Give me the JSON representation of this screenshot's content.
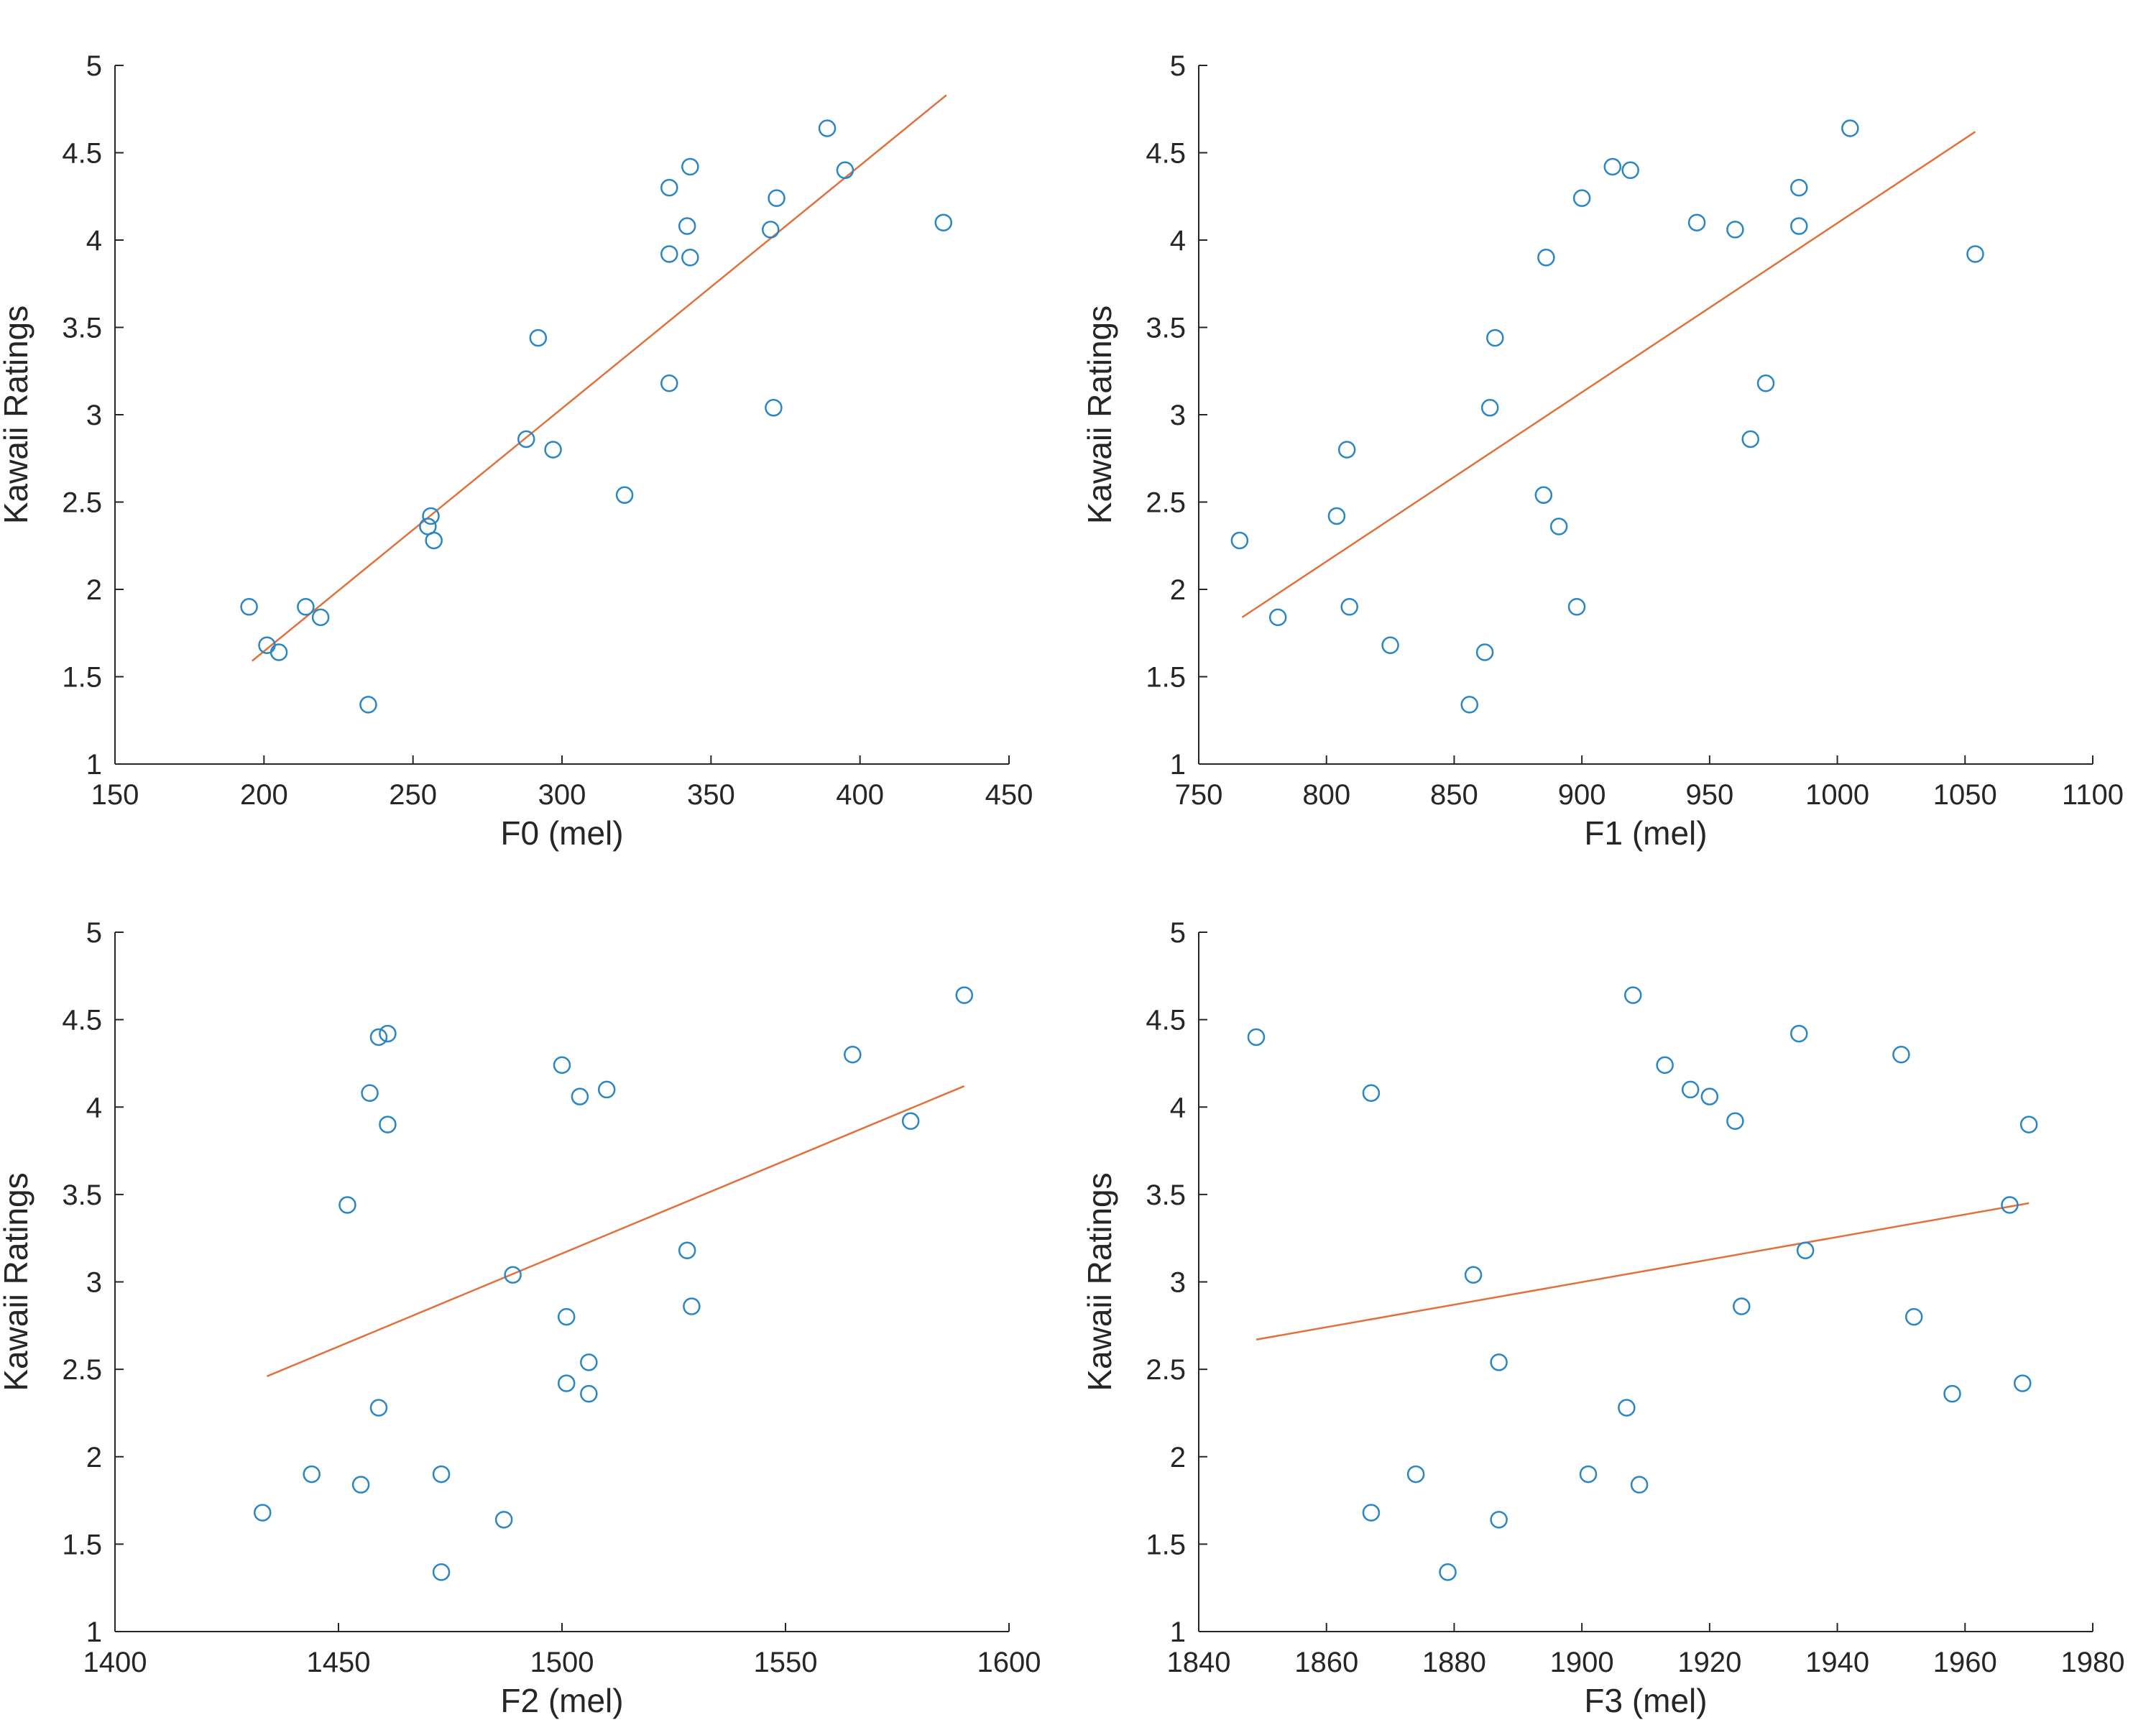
{
  "colors": {
    "points": "#2a86c4",
    "fit": "#e0713d",
    "axis": "#262626"
  },
  "chart_data": [
    {
      "type": "scatter",
      "xlabel": "F0 (mel)",
      "ylabel": "Kawaii Ratings",
      "xlim": [
        150,
        450
      ],
      "ylim": [
        1,
        5
      ],
      "xticks": [
        "150",
        "200",
        "250",
        "300",
        "350",
        "400",
        "450"
      ],
      "yticks": [
        "1",
        "1.5",
        "2",
        "2.5",
        "3",
        "3.5",
        "4",
        "4.5",
        "5"
      ],
      "points": [
        [
          195,
          1.9
        ],
        [
          201,
          1.68
        ],
        [
          205,
          1.64
        ],
        [
          214,
          1.9
        ],
        [
          219,
          1.84
        ],
        [
          235,
          1.34
        ],
        [
          255,
          2.36
        ],
        [
          256,
          2.42
        ],
        [
          257,
          2.28
        ],
        [
          288,
          2.86
        ],
        [
          292,
          3.44
        ],
        [
          297,
          2.8
        ],
        [
          321,
          2.54
        ],
        [
          336,
          4.3
        ],
        [
          336,
          3.92
        ],
        [
          336,
          3.18
        ],
        [
          342,
          4.08
        ],
        [
          343,
          4.42
        ],
        [
          343,
          3.9
        ],
        [
          370,
          4.06
        ],
        [
          371,
          3.04
        ],
        [
          372,
          4.24
        ],
        [
          389,
          4.64
        ],
        [
          395,
          4.4
        ],
        [
          428,
          4.1
        ]
      ],
      "fit_line": [
        [
          196,
          1.59
        ],
        [
          429,
          4.83
        ]
      ]
    },
    {
      "type": "scatter",
      "xlabel": "F1 (mel)",
      "ylabel": "Kawaii Ratings",
      "xlim": [
        750,
        1100
      ],
      "ylim": [
        1,
        5
      ],
      "xticks": [
        "750",
        "800",
        "850",
        "900",
        "950",
        "1000",
        "1050",
        "1100"
      ],
      "yticks": [
        "1",
        "1.5",
        "2",
        "2.5",
        "3",
        "3.5",
        "4",
        "4.5",
        "5"
      ],
      "points": [
        [
          766,
          2.28
        ],
        [
          781,
          1.84
        ],
        [
          804,
          2.42
        ],
        [
          808,
          2.8
        ],
        [
          809,
          1.9
        ],
        [
          825,
          1.68
        ],
        [
          856,
          1.34
        ],
        [
          862,
          1.64
        ],
        [
          864,
          3.04
        ],
        [
          866,
          3.44
        ],
        [
          885,
          2.54
        ],
        [
          886,
          3.9
        ],
        [
          891,
          2.36
        ],
        [
          898,
          1.9
        ],
        [
          900,
          4.24
        ],
        [
          912,
          4.42
        ],
        [
          919,
          4.4
        ],
        [
          945,
          4.1
        ],
        [
          960,
          4.06
        ],
        [
          966,
          2.86
        ],
        [
          972,
          3.18
        ],
        [
          985,
          4.3
        ],
        [
          985,
          4.08
        ],
        [
          1005,
          4.64
        ],
        [
          1054,
          3.92
        ]
      ],
      "fit_line": [
        [
          767,
          1.84
        ],
        [
          1054,
          4.62
        ]
      ]
    },
    {
      "type": "scatter",
      "xlabel": "F2 (mel)",
      "ylabel": "Kawaii Ratings",
      "xlim": [
        1400,
        1600
      ],
      "ylim": [
        1,
        5
      ],
      "xticks": [
        "1400",
        "1450",
        "1500",
        "1550",
        "1600"
      ],
      "yticks": [
        "1",
        "1.5",
        "2",
        "2.5",
        "3",
        "3.5",
        "4",
        "4.5",
        "5"
      ],
      "points": [
        [
          1433,
          1.68
        ],
        [
          1444,
          1.9
        ],
        [
          1452,
          3.44
        ],
        [
          1455,
          1.84
        ],
        [
          1457,
          4.08
        ],
        [
          1459,
          4.4
        ],
        [
          1459,
          2.28
        ],
        [
          1461,
          4.42
        ],
        [
          1461,
          3.9
        ],
        [
          1473,
          1.9
        ],
        [
          1473,
          1.34
        ],
        [
          1487,
          1.64
        ],
        [
          1489,
          3.04
        ],
        [
          1500,
          4.24
        ],
        [
          1501,
          2.8
        ],
        [
          1501,
          2.42
        ],
        [
          1504,
          4.06
        ],
        [
          1506,
          2.54
        ],
        [
          1506,
          2.36
        ],
        [
          1510,
          4.1
        ],
        [
          1528,
          3.18
        ],
        [
          1529,
          2.86
        ],
        [
          1565,
          4.3
        ],
        [
          1578,
          3.92
        ],
        [
          1590,
          4.64
        ]
      ],
      "fit_line": [
        [
          1434,
          2.46
        ],
        [
          1590,
          4.12
        ]
      ]
    },
    {
      "type": "scatter",
      "xlabel": "F3 (mel)",
      "ylabel": "Kawaii Ratings",
      "xlim": [
        1840,
        1980
      ],
      "ylim": [
        1,
        5
      ],
      "xticks": [
        "1840",
        "1860",
        "1880",
        "1900",
        "1920",
        "1940",
        "1960",
        "1980"
      ],
      "yticks": [
        "1",
        "1.5",
        "2",
        "2.5",
        "3",
        "3.5",
        "4",
        "4.5",
        "5"
      ],
      "points": [
        [
          1849,
          4.4
        ],
        [
          1867,
          4.08
        ],
        [
          1867,
          1.68
        ],
        [
          1874,
          1.9
        ],
        [
          1879,
          1.34
        ],
        [
          1883,
          3.04
        ],
        [
          1887,
          2.54
        ],
        [
          1887,
          1.64
        ],
        [
          1901,
          1.9
        ],
        [
          1907,
          2.28
        ],
        [
          1908,
          4.64
        ],
        [
          1909,
          1.84
        ],
        [
          1913,
          4.24
        ],
        [
          1917,
          4.1
        ],
        [
          1920,
          4.06
        ],
        [
          1924,
          3.92
        ],
        [
          1925,
          2.86
        ],
        [
          1934,
          4.42
        ],
        [
          1935,
          3.18
        ],
        [
          1950,
          4.3
        ],
        [
          1952,
          2.8
        ],
        [
          1958,
          2.36
        ],
        [
          1967,
          3.44
        ],
        [
          1969,
          2.42
        ],
        [
          1970,
          3.9
        ]
      ],
      "fit_line": [
        [
          1849,
          2.67
        ],
        [
          1970,
          3.45
        ]
      ]
    }
  ]
}
